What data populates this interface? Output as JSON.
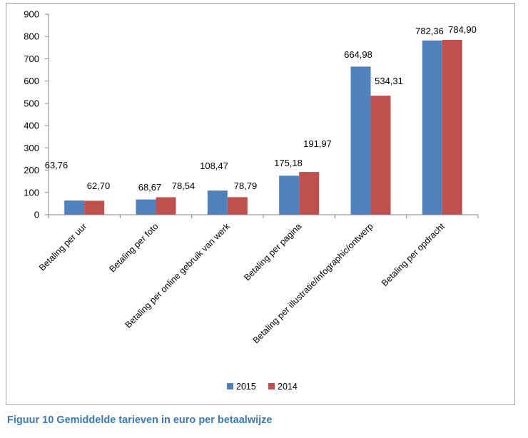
{
  "chart_data": {
    "type": "bar",
    "title": "",
    "xlabel": "",
    "ylabel": "",
    "ylim": [
      0,
      900
    ],
    "yticks": [
      0,
      100,
      200,
      300,
      400,
      500,
      600,
      700,
      800,
      900
    ],
    "categories": [
      "Betaling per uur",
      "Betaling per foto",
      "Betaling per online gebruik van werk",
      "Betaling per pagina",
      "Betaling per illustratie/infographic/ontwerp",
      "Betaling per opdracht"
    ],
    "series": [
      {
        "name": "2015",
        "color": "#4f81bd",
        "values": [
          63.76,
          68.67,
          108.47,
          175.18,
          664.98,
          782.36
        ],
        "labels": [
          "63,76",
          "68,67",
          "108,47",
          "175,18",
          "664,98",
          "782,36"
        ]
      },
      {
        "name": "2014",
        "color": "#c0504d",
        "values": [
          62.7,
          78.54,
          78.79,
          191.97,
          534.31,
          784.9
        ],
        "labels": [
          "62,70",
          "78,54",
          "78,79",
          "191,97",
          "534,31",
          "784,90"
        ]
      }
    ],
    "legend": "bottom",
    "grid": false
  },
  "caption": "Figuur 10 Gemiddelde tarieven in euro per betaalwijze"
}
